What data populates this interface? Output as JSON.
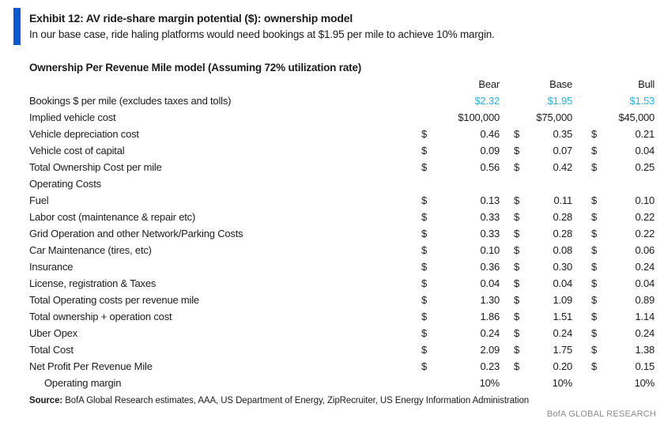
{
  "exhibit": {
    "title": "Exhibit 12: AV ride-share margin potential ($): ownership model",
    "subtitle": "In our base case, ride haling platforms would need bookings at $1.95 per mile to achieve 10% margin."
  },
  "table": {
    "title": "Ownership Per Revenue Mile model (Assuming 72% utilization rate)",
    "columns": [
      "Bear",
      "Base",
      "Bull"
    ],
    "currency_symbol": "$",
    "rows": [
      {
        "label": "Bookings $ per mile (excludes taxes and tolls)",
        "values": [
          "$2.32",
          "$1.95",
          "$1.53"
        ],
        "dollar": false,
        "label_bold": false,
        "value_bold": false,
        "value_class": "blue"
      },
      {
        "label": "Implied vehicle cost",
        "values": [
          "$100,000",
          "$75,000",
          "$45,000"
        ],
        "dollar": false,
        "label_bold": true,
        "value_bold": true
      },
      {
        "label": "Vehicle depreciation cost",
        "values": [
          "0.46",
          "0.35",
          "0.21"
        ],
        "dollar": true
      },
      {
        "label": "Vehicle cost of capital",
        "values": [
          "0.09",
          "0.07",
          "0.04"
        ],
        "dollar": true
      },
      {
        "label": "Total Ownership Cost per mile",
        "values": [
          "0.56",
          "0.42",
          "0.25"
        ],
        "dollar": true,
        "label_bold": true,
        "value_bold": true
      },
      {
        "label": "Operating Costs",
        "values": null,
        "label_bold": true
      },
      {
        "label": "Fuel",
        "values": [
          "0.13",
          "0.11",
          "0.10"
        ],
        "dollar": true
      },
      {
        "label": "Labor cost (maintenance & repair etc)",
        "values": [
          "0.33",
          "0.28",
          "0.22"
        ],
        "dollar": true
      },
      {
        "label": "Grid Operation and other Network/Parking Costs",
        "values": [
          "0.33",
          "0.28",
          "0.22"
        ],
        "dollar": true
      },
      {
        "label": "Car Maintenance (tires, etc)",
        "values": [
          "0.10",
          "0.08",
          "0.06"
        ],
        "dollar": true
      },
      {
        "label": "Insurance",
        "values": [
          "0.36",
          "0.30",
          "0.24"
        ],
        "dollar": true
      },
      {
        "label": "License, registration & Taxes",
        "values": [
          "0.04",
          "0.04",
          "0.04"
        ],
        "dollar": true
      },
      {
        "label": "Total Operating costs per revenue mile",
        "values": [
          "1.30",
          "1.09",
          "0.89"
        ],
        "dollar": true,
        "value_bold": true
      },
      {
        "label": "Total ownership + operation cost",
        "values": [
          "1.86",
          "1.51",
          "1.14"
        ],
        "dollar": true,
        "value_bold": true
      },
      {
        "label": "Uber Opex",
        "values": [
          "0.24",
          "0.24",
          "0.24"
        ],
        "dollar": true,
        "value_bold": true
      },
      {
        "label": "Total Cost",
        "values": [
          "2.09",
          "1.75",
          "1.38"
        ],
        "dollar": true,
        "value_bold": true
      },
      {
        "label": "Net Profit Per Revenue Mile",
        "values": [
          "0.23",
          "0.20",
          "0.15"
        ],
        "dollar": true,
        "label_bold": true,
        "value_bold": true
      },
      {
        "label": "Operating margin",
        "values": [
          "10%",
          "10%",
          "10%"
        ],
        "dollar": false,
        "indent": true
      }
    ]
  },
  "footer": {
    "source_label": "Source:",
    "source_text": " BofA Global Research estimates, AAA, US Department of Energy, ZipRecruiter, US Energy Information Administration",
    "brand": "BofA GLOBAL RESEARCH"
  },
  "colors": {
    "accent_blue": "#0b58d0",
    "value_blue": "#29b1e6",
    "brand_gray": "#8c8c8c"
  }
}
